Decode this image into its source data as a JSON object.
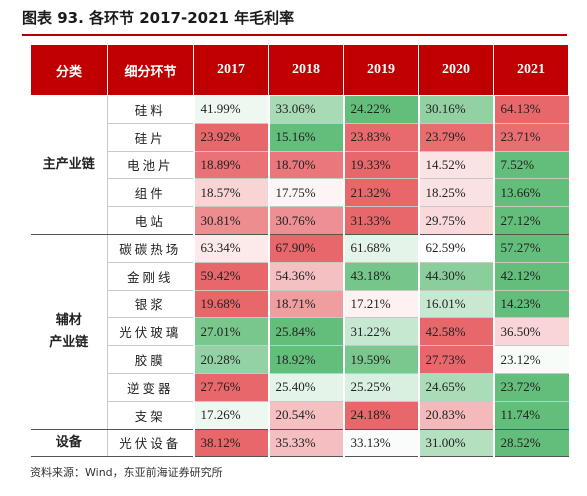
{
  "title": "图表 93. 各环节 2017-2021 年毛利率",
  "columns": {
    "category": "分类",
    "sub": "细分环节",
    "years": [
      "2017",
      "2018",
      "2019",
      "2020",
      "2021"
    ]
  },
  "groups": [
    {
      "label_lines": [
        "主产业链"
      ],
      "rows": [
        {
          "name": "硅料",
          "values": [
            "41.99%",
            "33.06%",
            "24.22%",
            "30.16%",
            "64.13%"
          ]
        },
        {
          "name": "硅片",
          "values": [
            "23.92%",
            "15.16%",
            "23.83%",
            "23.79%",
            "23.71%"
          ]
        },
        {
          "name": "电池片",
          "values": [
            "18.89%",
            "18.70%",
            "19.33%",
            "14.52%",
            "7.52%"
          ]
        },
        {
          "name": "组件",
          "values": [
            "18.57%",
            "17.75%",
            "21.32%",
            "18.25%",
            "13.66%"
          ]
        },
        {
          "name": "电站",
          "values": [
            "30.81%",
            "30.76%",
            "31.33%",
            "29.75%",
            "27.12%"
          ]
        }
      ]
    },
    {
      "label_lines": [
        "辅材",
        "产业链"
      ],
      "rows": [
        {
          "name": "碳碳热场",
          "values": [
            "63.34%",
            "67.90%",
            "61.68%",
            "62.59%",
            "57.27%"
          ]
        },
        {
          "name": "金刚线",
          "values": [
            "59.42%",
            "54.36%",
            "43.18%",
            "44.30%",
            "42.12%"
          ]
        },
        {
          "name": "银浆",
          "values": [
            "19.68%",
            "18.71%",
            "17.21%",
            "16.01%",
            "14.23%"
          ]
        },
        {
          "name": "光伏玻璃",
          "values": [
            "27.01%",
            "25.84%",
            "31.22%",
            "42.58%",
            "36.50%"
          ]
        },
        {
          "name": "胶膜",
          "values": [
            "20.28%",
            "18.92%",
            "19.59%",
            "27.73%",
            "23.12%"
          ]
        },
        {
          "name": "逆变器",
          "values": [
            "27.76%",
            "25.40%",
            "25.25%",
            "24.65%",
            "23.72%"
          ]
        },
        {
          "name": "支架",
          "values": [
            "17.26%",
            "20.54%",
            "24.18%",
            "20.83%",
            "11.74%"
          ]
        }
      ]
    },
    {
      "label_lines": [
        "设备"
      ],
      "rows": [
        {
          "name": "光伏设备",
          "values": [
            "38.12%",
            "35.33%",
            "33.13%",
            "31.00%",
            "28.52%"
          ]
        }
      ]
    }
  ],
  "source": "资料来源：Wind，东亚前海证券研究所",
  "colors": {
    "header_bg": "#c00000",
    "high": "#e8676b",
    "mid": "#ffffff",
    "low": "#63be7b"
  }
}
